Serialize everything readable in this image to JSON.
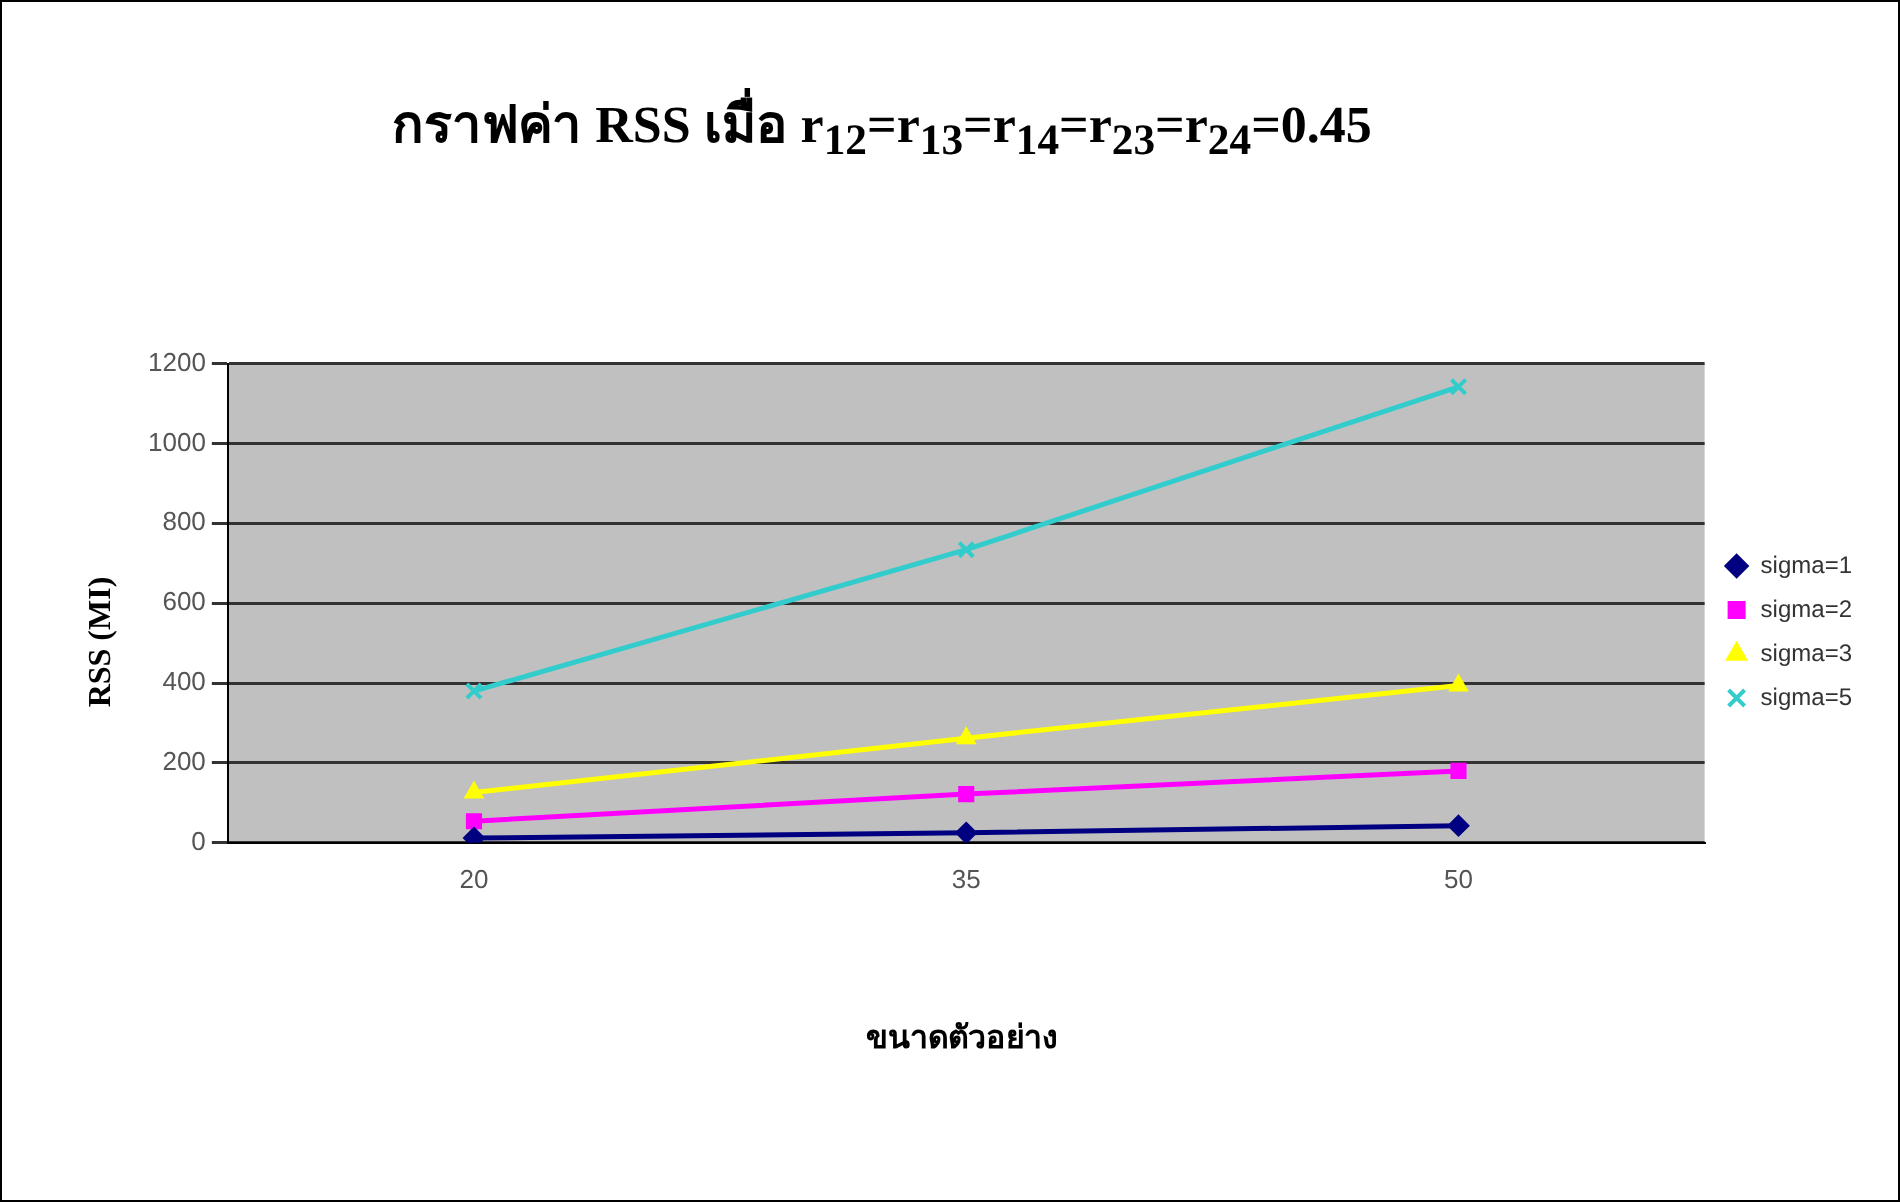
{
  "chart_data": {
    "type": "line",
    "title": "กราฟค่า RSS เมื่อ r$_{12}$=r$_{13}$=r$_{14}$=r$_{23}$=r$_{24}$=0.45",
    "xlabel": "ขนาดตัวอย่าง",
    "ylabel": "RSS (MI)",
    "categories": [
      "20",
      "35",
      "50"
    ],
    "series": [
      {
        "name": "sigma=1",
        "color": "#000080",
        "marker": "diamond",
        "values": [
          12,
          25,
          43
        ]
      },
      {
        "name": "sigma=2",
        "color": "#ff00ff",
        "marker": "square",
        "values": [
          54,
          122,
          180
        ]
      },
      {
        "name": "sigma=3",
        "color": "#ffff00",
        "marker": "triangle",
        "values": [
          126,
          262,
          394
        ]
      },
      {
        "name": "sigma=5",
        "color": "#33cccc",
        "marker": "cross",
        "values": [
          380,
          734,
          1142
        ]
      }
    ],
    "ylim": [
      0,
      1200
    ],
    "yticks": [
      0,
      200,
      400,
      600,
      800,
      1000,
      1200
    ],
    "grid": "y",
    "legend": "right"
  }
}
